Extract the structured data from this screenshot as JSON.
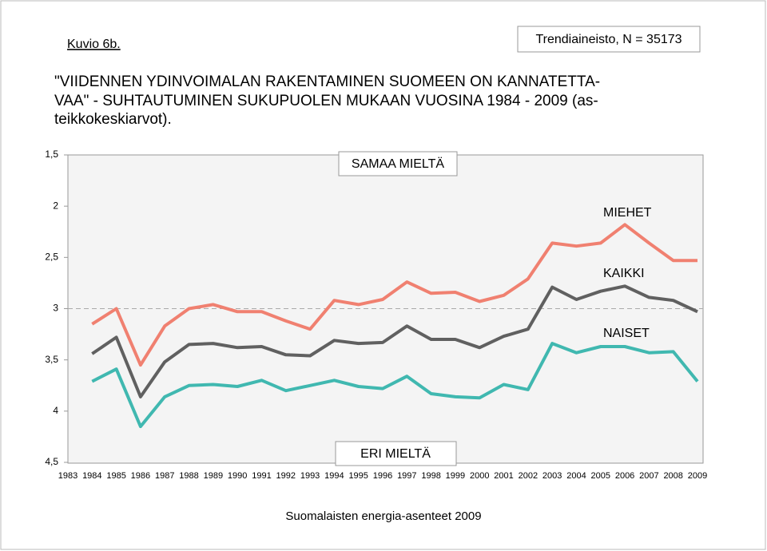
{
  "chart_data": {
    "type": "line",
    "figure_label": "Kuvio 6b.",
    "source_box": "Trendiaineisto, N = 35173",
    "title_lines": [
      "\"VIIDENNEN YDINVOIMALAN RAKENTAMINEN SUOMEEN ON KANNATETTA-",
      "VAA\" - SUHTAUTUMINEN SUKUPUOLEN MUKAAN VUOSINA 1984 - 2009 (as-",
      "teikkokeskiarvot)."
    ],
    "annotations": {
      "top": "SAMAA MIELTÄ",
      "bottom": "ERI MIELTÄ"
    },
    "footer": "Suomalaisten energia-asenteet 2009",
    "categories": [
      "1983",
      "1984",
      "1985",
      "1986",
      "1987",
      "1988",
      "1989",
      "1990",
      "1991",
      "1992",
      "1993",
      "1994",
      "1995",
      "1996",
      "1997",
      "1998",
      "1999",
      "2000",
      "2001",
      "2002",
      "2003",
      "2004",
      "2005",
      "2006",
      "2007",
      "2008",
      "2009"
    ],
    "series": [
      {
        "name": "MIEHET",
        "color": "#f08070",
        "values": [
          null,
          3.15,
          3.0,
          3.55,
          3.17,
          3.0,
          2.96,
          3.03,
          3.03,
          3.12,
          3.2,
          2.92,
          2.96,
          2.91,
          2.74,
          2.85,
          2.84,
          2.93,
          2.87,
          2.71,
          2.36,
          2.39,
          2.36,
          2.18,
          2.36,
          2.53,
          2.53
        ]
      },
      {
        "name": "KAIKKI",
        "color": "#606060",
        "values": [
          null,
          3.44,
          3.28,
          3.86,
          3.52,
          3.35,
          3.34,
          3.38,
          3.37,
          3.45,
          3.46,
          3.31,
          3.34,
          3.33,
          3.17,
          3.3,
          3.3,
          3.38,
          3.27,
          3.2,
          2.79,
          2.91,
          2.83,
          2.78,
          2.89,
          2.92,
          3.03
        ]
      },
      {
        "name": "NAISET",
        "color": "#40b8b0",
        "values": [
          null,
          3.71,
          3.59,
          4.15,
          3.86,
          3.75,
          3.74,
          3.76,
          3.7,
          3.8,
          3.75,
          3.7,
          3.76,
          3.78,
          3.66,
          3.83,
          3.86,
          3.87,
          3.74,
          3.79,
          3.34,
          3.43,
          3.37,
          3.37,
          3.43,
          3.42,
          3.71
        ]
      }
    ],
    "ylim": [
      1.5,
      4.5
    ],
    "y_inverted": true,
    "yticks": [
      {
        "value": 1.5,
        "label": "1,5"
      },
      2,
      {
        "value": 2.5,
        "label": "2,5"
      },
      3,
      {
        "value": 3.5,
        "label": "3,5"
      },
      4,
      {
        "value": 4.5,
        "label": "4,5"
      }
    ],
    "reference_line": 3
  }
}
